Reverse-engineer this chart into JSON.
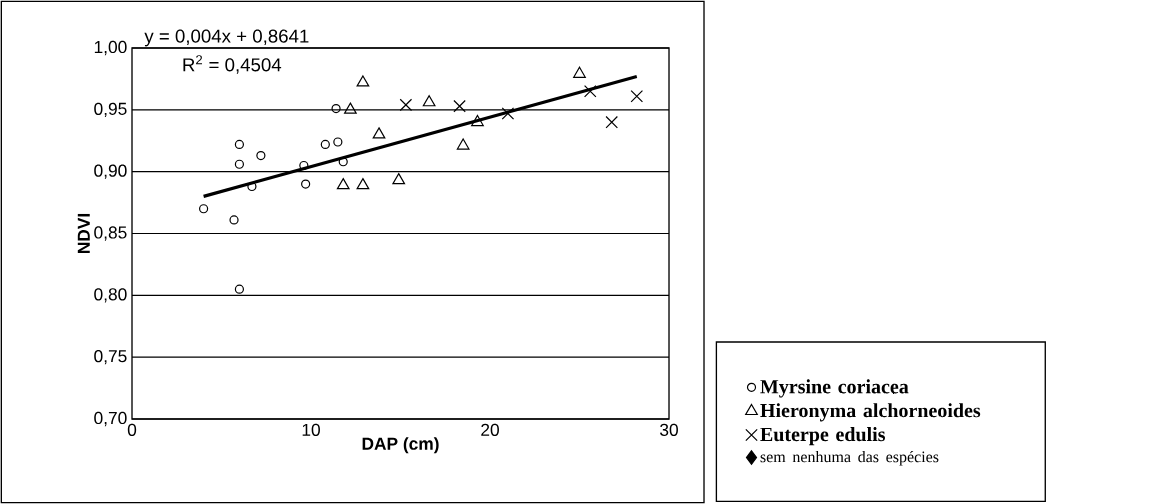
{
  "chart_data": {
    "type": "scatter",
    "xlabel": "DAP (cm)",
    "ylabel": "NDVI",
    "annotations": [
      "y = 0,004x + 0,8641",
      "R$^{2}$ = 0,4504"
    ],
    "xlim": [
      0,
      30
    ],
    "ylim": [
      0.7,
      1.0
    ],
    "xticks": [
      0,
      10,
      20,
      30
    ],
    "yticks": [
      {
        "value": 0.7,
        "label": "0,70"
      },
      {
        "value": 0.75,
        "label": "0,75"
      },
      {
        "value": 0.8,
        "label": "0,80"
      },
      {
        "value": 0.85,
        "label": "0,85"
      },
      {
        "value": 0.9,
        "label": "0,90"
      },
      {
        "value": 0.95,
        "label": "0,95"
      },
      {
        "value": 1.0,
        "label": "1,00"
      }
    ],
    "grid": "y",
    "legend": "right",
    "series": [
      {
        "name": "Myrsine coriacea",
        "color": "#000000",
        "marker": "circle",
        "x": [
          4.0,
          5.7,
          6.0,
          6.0,
          7.2,
          6.7,
          6.0,
          9.6,
          9.7,
          10.8,
          11.5,
          11.4,
          11.8
        ],
        "values": [
          0.87,
          0.861,
          0.922,
          0.906,
          0.913,
          0.888,
          0.805,
          0.905,
          0.89,
          0.922,
          0.924,
          0.951,
          0.908
        ]
      },
      {
        "name": "Hieronyma alchorneoides",
        "color": "#000000",
        "marker": "triangle",
        "x": [
          12.9,
          12.2,
          13.8,
          11.8,
          12.9,
          14.9,
          16.6,
          19.3,
          18.5,
          25.0
        ],
        "values": [
          0.972,
          0.95,
          0.93,
          0.889,
          0.889,
          0.893,
          0.956,
          0.94,
          0.921,
          0.979
        ]
      },
      {
        "name": "Euterpe edulis",
        "color": "#000000",
        "marker": "cross",
        "x": [
          15.3,
          18.3,
          21.0,
          25.6,
          28.2,
          26.8
        ],
        "values": [
          0.954,
          0.953,
          0.947,
          0.965,
          0.961,
          0.94
        ]
      },
      {
        "name": "sem nenhuma das espécies",
        "color": "#000000",
        "marker": "diamond"
      },
      {
        "type": "line",
        "color": "#000000",
        "marker": "none",
        "x": [
          4.0,
          28.2
        ],
        "values": [
          0.88,
          0.977
        ]
      }
    ]
  }
}
